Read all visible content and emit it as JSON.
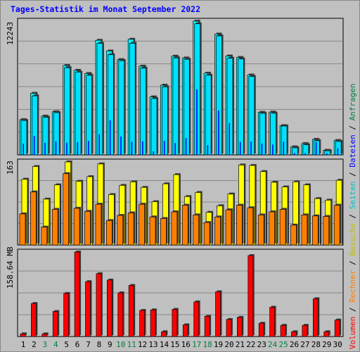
{
  "title": "Tages-Statistik im Monat September 2022",
  "colors": {
    "anfragen": "#00ffff",
    "dateien": "#0000ff",
    "seiten": "#00ffff",
    "besuche": "#ffff00",
    "rechner": "#ff8000",
    "volumen": "#ff0000",
    "weekend": "#008040",
    "weekday": "#000000"
  },
  "right_legend": {
    "top": [
      {
        "text": "Anfragen",
        "color": "#008040"
      },
      {
        "text": " / ",
        "color": "#000000"
      },
      {
        "text": "Dateien",
        "color": "#0000ff"
      },
      {
        "text": " / ",
        "color": "#000000"
      },
      {
        "text": "Seiten",
        "color": "#00c0c0"
      },
      {
        "text": " / ",
        "color": "#000000"
      },
      {
        "text": "Besuche",
        "color": "#c0c000"
      }
    ],
    "bottom": [
      {
        "text": " / ",
        "color": "#000000"
      },
      {
        "text": "Rechner",
        "color": "#ff8000"
      },
      {
        "text": " / ",
        "color": "#000000"
      },
      {
        "text": "Volumen",
        "color": "#ff0000"
      }
    ]
  },
  "chart_data": [
    {
      "type": "bar",
      "panel": "hits",
      "ymax_label": "12243",
      "ymax": 12243,
      "categories": [
        "1",
        "2",
        "3",
        "4",
        "5",
        "6",
        "7",
        "8",
        "9",
        "10",
        "11",
        "12",
        "13",
        "14",
        "15",
        "16",
        "17",
        "18",
        "19",
        "20",
        "21",
        "22",
        "23",
        "24",
        "25",
        "26",
        "27",
        "28",
        "29",
        "30"
      ],
      "weekend": [
        3,
        4,
        10,
        11,
        17,
        18,
        24,
        25
      ],
      "series": [
        {
          "name": "Anfragen",
          "values": [
            3230,
            5640,
            3550,
            3950,
            8180,
            7740,
            7450,
            10490,
            9510,
            8720,
            10580,
            8120,
            5310,
            6380,
            9030,
            8870,
            12243,
            7480,
            11060,
            9050,
            8920,
            7310,
            3900,
            3920,
            2680,
            740,
            1040,
            1420,
            420,
            1320
          ]
        },
        {
          "name": "Dateien",
          "values": [
            3150,
            5400,
            3440,
            3870,
            7980,
            7580,
            7290,
            10210,
            9170,
            8630,
            10220,
            7940,
            5160,
            6230,
            8880,
            8750,
            12000,
            7290,
            10890,
            8850,
            8780,
            7180,
            3810,
            3820,
            2640,
            650,
            930,
            1300,
            380,
            1230
          ]
        },
        {
          "name": "Seiten",
          "values": [
            1030,
            1730,
            1100,
            1240,
            1110,
            1160,
            1280,
            1900,
            3160,
            1680,
            1190,
            1240,
            330,
            1280,
            1080,
            1540,
            6000,
            890,
            4060,
            2920,
            1180,
            1210,
            1030,
            940,
            1210,
            160,
            160,
            1180,
            140,
            600
          ]
        }
      ]
    },
    {
      "type": "bar",
      "panel": "visits",
      "ymax_label": "163",
      "ymax": 163,
      "categories": [
        "1",
        "2",
        "3",
        "4",
        "5",
        "6",
        "7",
        "8",
        "9",
        "10",
        "11",
        "12",
        "13",
        "14",
        "15",
        "16",
        "17",
        "18",
        "19",
        "20",
        "21",
        "22",
        "23",
        "24",
        "25",
        "26",
        "27",
        "28",
        "29",
        "30"
      ],
      "series": [
        {
          "name": "Besuche",
          "values": [
            129,
            154,
            90,
            118,
            163,
            125,
            134,
            159,
            99,
            117,
            124,
            113,
            85,
            120,
            138,
            95,
            103,
            64,
            77,
            100,
            157,
            156,
            144,
            123,
            114,
            124,
            118,
            91,
            88,
            127
          ]
        },
        {
          "name": "Rechner",
          "values": [
            61,
            104,
            35,
            70,
            140,
            72,
            66,
            80,
            48,
            58,
            63,
            80,
            55,
            52,
            65,
            78,
            59,
            44,
            55,
            69,
            78,
            73,
            59,
            65,
            70,
            39,
            59,
            57,
            56,
            78
          ]
        }
      ]
    },
    {
      "type": "bar",
      "panel": "volume",
      "ymax_label": "158.64 MB",
      "ymax": 158.64,
      "categories": [
        "1",
        "2",
        "3",
        "4",
        "5",
        "6",
        "7",
        "8",
        "9",
        "10",
        "11",
        "12",
        "13",
        "14",
        "15",
        "16",
        "17",
        "18",
        "19",
        "20",
        "21",
        "22",
        "23",
        "24",
        "25",
        "26",
        "27",
        "28",
        "29",
        "30"
      ],
      "series": [
        {
          "name": "Volumen",
          "values": [
            5,
            62,
            5,
            47,
            81,
            158.64,
            103,
            118,
            106,
            82,
            96,
            49,
            50,
            9,
            51,
            22,
            65,
            38,
            84,
            32,
            36,
            152,
            25,
            55,
            21,
            9,
            21,
            71,
            9,
            31
          ]
        }
      ]
    }
  ]
}
